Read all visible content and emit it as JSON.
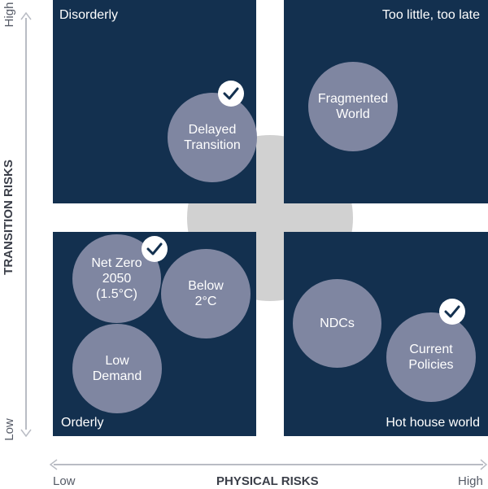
{
  "quadrants": {
    "top_left": "Disorderly",
    "top_right": "Too little, too late",
    "bottom_left": "Orderly",
    "bottom_right": "Hot house world"
  },
  "scenarios": [
    {
      "label": "Delayed\nTransition",
      "checked": true
    },
    {
      "label": "Fragmented\nWorld",
      "checked": false
    },
    {
      "label": "Net Zero\n2050\n(1.5°C)",
      "checked": true
    },
    {
      "label": "Below\n2°C",
      "checked": false
    },
    {
      "label": "Low\nDemand",
      "checked": false
    },
    {
      "label": "NDCs",
      "checked": false
    },
    {
      "label": "Current\nPolicies",
      "checked": true
    }
  ],
  "axes": {
    "y_title": "TRANSITION RISKS",
    "y_high": "High",
    "y_low": "Low",
    "x_title": "PHYSICAL RISKS",
    "x_low": "Low",
    "x_high": "High"
  },
  "colors": {
    "quadrant": "#13304f",
    "circle": "#7f86a1",
    "center_cross": "#d1d1d1",
    "check": "#13304f"
  },
  "icons": [
    "check-badge-icon"
  ]
}
